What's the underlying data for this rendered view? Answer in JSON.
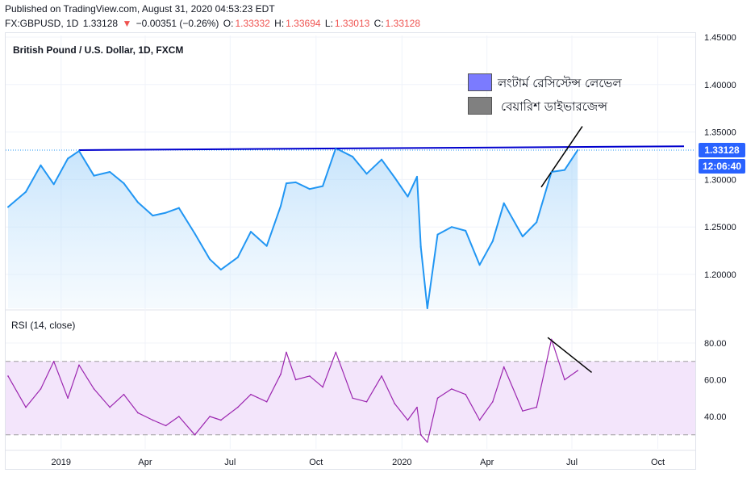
{
  "header": {
    "published": "Published on TradingView.com, August 31, 2020 04:53:23 EDT",
    "symbol": "FX:GBPUSD, 1D",
    "last": "1.33128",
    "change_arrow": "▼",
    "change": "−0.00351 (−0.26%)",
    "o_label": "O:",
    "o_val": "1.33332",
    "h_label": "H:",
    "h_val": "1.33694",
    "l_label": "L:",
    "l_val": "1.33013",
    "c_label": "C:",
    "c_val": "1.33128"
  },
  "main_title": "British Pound / U.S. Dollar, 1D, FXCM",
  "rsi_title": "RSI (14, close)",
  "legend": [
    {
      "label": "লংটার্ম রেসিস্টেন্স লেভেল",
      "color": "#7b7bff"
    },
    {
      "label": "বেয়ারিশ ডাইভারজেন্স",
      "color": "#808080"
    }
  ],
  "price_tag": {
    "price": "1.33128",
    "countdown": "12:06:40",
    "color": "#2962ff"
  },
  "colors": {
    "price_line": "#2196f3",
    "rsi_line": "#9c27b0",
    "trend_line": "#0000cd",
    "rsi_band": "#f3e5fb"
  },
  "chart_data": [
    {
      "type": "line",
      "title": "British Pound / U.S. Dollar, 1D, FXCM",
      "x_tick_labels": [
        "2019",
        "Apr",
        "Jul",
        "Oct",
        "2020",
        "Apr",
        "Jul",
        "Oct"
      ],
      "y_tick_labels": [
        "1.45000",
        "1.40000",
        "1.35000",
        "1.30000",
        "1.25000",
        "1.20000"
      ],
      "ylim": [
        1.165,
        1.455
      ],
      "x": [
        "2018-12-27",
        "2019-01-15",
        "2019-01-31",
        "2019-02-14",
        "2019-03-01",
        "2019-03-13",
        "2019-03-29",
        "2019-04-15",
        "2019-04-30",
        "2019-05-15",
        "2019-05-31",
        "2019-06-14",
        "2019-06-28",
        "2019-07-15",
        "2019-07-31",
        "2019-08-12",
        "2019-08-30",
        "2019-09-13",
        "2019-09-30",
        "2019-10-15",
        "2019-10-21",
        "2019-10-31",
        "2019-11-15",
        "2019-11-29",
        "2019-12-13",
        "2019-12-31",
        "2020-01-15",
        "2020-01-31",
        "2020-02-14",
        "2020-02-28",
        "2020-03-09",
        "2020-03-13",
        "2020-03-20",
        "2020-03-31",
        "2020-04-15",
        "2020-04-30",
        "2020-05-15",
        "2020-05-29",
        "2020-06-10",
        "2020-06-30",
        "2020-07-15",
        "2020-07-31",
        "2020-08-14",
        "2020-08-28"
      ],
      "series": [
        {
          "values": [
            1.271,
            1.287,
            1.315,
            1.295,
            1.322,
            1.33,
            1.304,
            1.308,
            1.296,
            1.276,
            1.262,
            1.265,
            1.27,
            1.243,
            1.216,
            1.205,
            1.218,
            1.245,
            1.23,
            1.272,
            1.296,
            1.297,
            1.29,
            1.293,
            1.333,
            1.324,
            1.306,
            1.321,
            1.302,
            1.282,
            1.303,
            1.229,
            1.155,
            1.242,
            1.25,
            1.246,
            1.21,
            1.235,
            1.275,
            1.24,
            1.255,
            1.308,
            1.31,
            1.331
          ]
        }
      ],
      "resistance_line": {
        "x": [
          "2019-03-13",
          "2020-08-31"
        ],
        "y": [
          1.331,
          1.335
        ]
      },
      "divergence_line": {
        "x": [
          "2020-07-20",
          "2020-09-02"
        ],
        "y": [
          1.292,
          1.356
        ]
      }
    },
    {
      "type": "line",
      "title": "RSI (14, close)",
      "y_tick_labels": [
        "80.00",
        "60.00",
        "40.00"
      ],
      "ylim": [
        19,
        88
      ],
      "bands": [
        30,
        70
      ],
      "x": [
        "2018-12-27",
        "2019-01-15",
        "2019-01-31",
        "2019-02-14",
        "2019-03-01",
        "2019-03-13",
        "2019-03-29",
        "2019-04-15",
        "2019-04-30",
        "2019-05-15",
        "2019-05-31",
        "2019-06-14",
        "2019-06-28",
        "2019-07-15",
        "2019-07-31",
        "2019-08-12",
        "2019-08-30",
        "2019-09-13",
        "2019-09-30",
        "2019-10-15",
        "2019-10-21",
        "2019-10-31",
        "2019-11-15",
        "2019-11-29",
        "2019-12-13",
        "2019-12-31",
        "2020-01-15",
        "2020-01-31",
        "2020-02-14",
        "2020-02-28",
        "2020-03-09",
        "2020-03-13",
        "2020-03-20",
        "2020-03-31",
        "2020-04-15",
        "2020-04-30",
        "2020-05-15",
        "2020-05-29",
        "2020-06-10",
        "2020-06-30",
        "2020-07-15",
        "2020-07-31",
        "2020-08-14",
        "2020-08-28"
      ],
      "series": [
        {
          "values": [
            62,
            45,
            55,
            70,
            50,
            68,
            55,
            45,
            52,
            42,
            38,
            35,
            40,
            30,
            40,
            38,
            45,
            52,
            48,
            63,
            75,
            60,
            62,
            56,
            75,
            50,
            48,
            62,
            47,
            38,
            45,
            30,
            26,
            50,
            55,
            52,
            38,
            48,
            67,
            43,
            45,
            82,
            60,
            65
          ]
        }
      ],
      "divergence_line": {
        "x": [
          "2020-07-27",
          "2020-09-12"
        ],
        "y": [
          83,
          64
        ]
      }
    }
  ]
}
